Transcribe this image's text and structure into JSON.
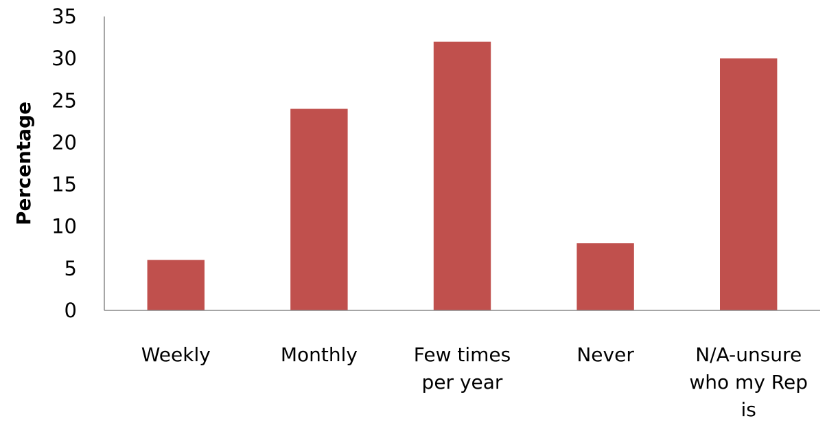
{
  "chart_data": {
    "type": "bar",
    "title": "",
    "xlabel": "",
    "ylabel": "Percentage",
    "categories": [
      "Weekly",
      "Monthly",
      "Few times per year",
      "Never",
      "N/A-unsure who my Rep is"
    ],
    "category_lines": [
      [
        "Weekly"
      ],
      [
        "Monthly"
      ],
      [
        "Few times",
        "per year"
      ],
      [
        "Never"
      ],
      [
        "N/A-unsure",
        "who my Rep",
        "is"
      ]
    ],
    "values": [
      6,
      24,
      32,
      8,
      30
    ],
    "ylim": [
      0,
      35
    ],
    "yticks": [
      0,
      5,
      10,
      15,
      20,
      25,
      30,
      35
    ],
    "grid": false,
    "legend": "none",
    "bar_color": "#C0504D",
    "axis_color": "#888888"
  }
}
